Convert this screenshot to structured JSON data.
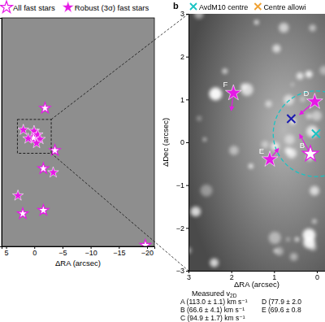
{
  "chart_data": [
    {
      "type": "scatter",
      "x_label": "ΔRA (arcsec)",
      "xlim": [
        5.8,
        -21.3
      ],
      "xticks": [
        5,
        0,
        {
          "value": -5,
          "label": "−5"
        },
        {
          "value": -10,
          "label": "−10"
        },
        {
          "value": -15,
          "label": "−15"
        },
        {
          "value": -20,
          "label": "−20"
        }
      ],
      "ylim": [
        -19.5,
        21
      ],
      "tick_labels": "x",
      "legend": "top",
      "series": [
        {
          "name": "All fast stars",
          "color": "#e619e6",
          "marker": "star-open",
          "x": [
            -1.9,
            -3.65,
            -1.6,
            2.05,
            -1.6,
            -19.7,
            0.15
          ],
          "y": [
            5.0,
            -2.5,
            -5.7,
            -13.7,
            -13.1,
            -19.3,
            -0.27
          ]
        },
        {
          "name": "Robust (3σ) fast stars",
          "color": "#e619e6",
          "marker": "star",
          "x": [
            -3.35,
            2.9,
            1.95,
            0.05,
            1.1,
            -0.6,
            -1.0,
            -0.4
          ],
          "y": [
            -6.4,
            -10.5,
            1.15,
            0.95,
            -0.4,
            0.3,
            -0.5,
            -1.2
          ]
        }
      ]
    },
    {
      "type": "scatter",
      "label": "b",
      "x_label": "ΔRA (arcsec)",
      "y_label": "ΔDec (arcsec)",
      "xlim": [
        3,
        -0.19
      ],
      "xticks": [
        3,
        2,
        1,
        0
      ],
      "ylim": [
        -3,
        3
      ],
      "yticks": [
        3,
        2,
        1,
        0,
        {
          "value": -1,
          "label": "−1"
        },
        {
          "value": -2,
          "label": "−2"
        },
        {
          "value": -3,
          "label": "−3"
        }
      ],
      "legend": "top",
      "color": "#e619e6",
      "stars": [
        {
          "label": "F",
          "marker": "star",
          "x": 1.95,
          "y": 1.15,
          "dx": 0.05,
          "dy": -0.4
        },
        {
          "label": "D",
          "marker": "star",
          "x": 0.05,
          "y": 0.95,
          "dx": 0.35,
          "dy": -0.3
        },
        {
          "label": "E",
          "marker": "star",
          "x": 1.1,
          "y": -0.4,
          "dx": -0.2,
          "dy": 0.25
        },
        {
          "label": "B",
          "marker": "star-open",
          "x": 0.15,
          "y": -0.27,
          "dx": 0.25,
          "dy": 0.45
        }
      ],
      "centres": [
        {
          "name": "AvdM10 centre",
          "color": "#19c3c3",
          "x": 0.02,
          "y": 0.2,
          "radius": 1.0
        },
        {
          "name": "Centre allowi",
          "color": "#f0a030",
          "x": null,
          "y": null
        },
        {
          "color": "#1a1ab0",
          "x": 0.6,
          "y": 0.55
        }
      ],
      "velocity_title": {
        "text": "Measured v",
        "subscript": "2D"
      },
      "velocities": [
        "A (113.0 ± 1.1) km s⁻¹",
        "B (66.6 ± 4.1) km s⁻¹",
        "C (94.9 ± 1.7) km s⁻¹",
        "D (77.9 ± 2.0",
        "E (69.6 ± 0.8"
      ]
    }
  ]
}
